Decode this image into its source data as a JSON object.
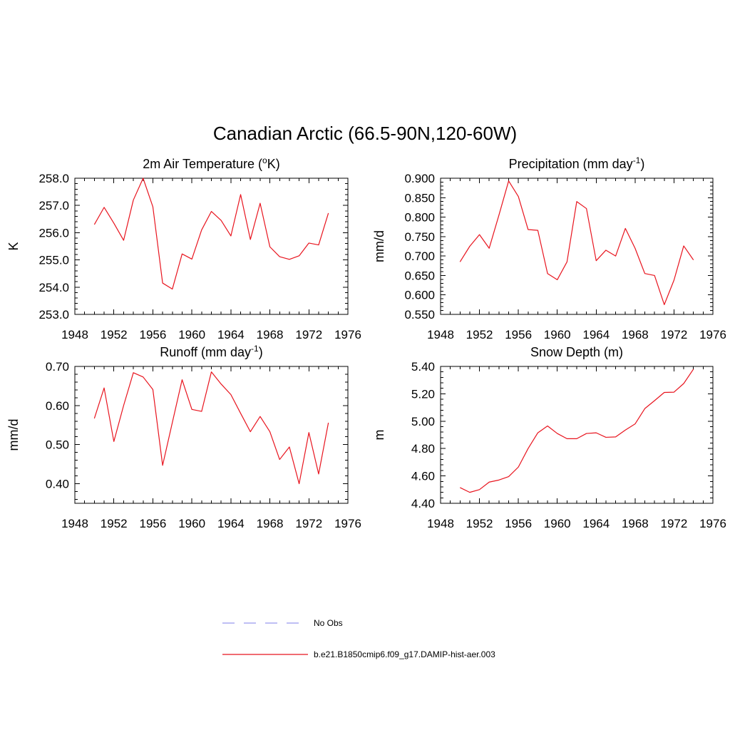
{
  "figure": {
    "title": "Canadian Arctic (66.5-90N,120-60W)"
  },
  "colors": {
    "model_line": "#e8141e",
    "obs_line": "#9999ee",
    "axis": "#000000"
  },
  "legend": {
    "obs_label": "No Obs",
    "model_label": "b.e21.B1850cmip6.f09_g17.DAMIP-hist-aer.003"
  },
  "chart_data": [
    {
      "type": "line",
      "title_main": "2m Air Temperature (",
      "title_sup": "o",
      "title_end": "K)",
      "ylabel": "K",
      "xlim": [
        1948,
        1976
      ],
      "xticks": [
        1948,
        1952,
        1956,
        1960,
        1964,
        1968,
        1972,
        1976
      ],
      "ylim": [
        253.0,
        258.0
      ],
      "yticks": [
        "253.0",
        "254.0",
        "255.0",
        "256.0",
        "257.0",
        "258.0"
      ],
      "series": [
        {
          "x": [
            1950,
            1951,
            1952,
            1953,
            1954,
            1955,
            1956,
            1957,
            1958,
            1959,
            1960,
            1961,
            1962,
            1963,
            1964,
            1965,
            1966,
            1967,
            1968,
            1969,
            1970,
            1971,
            1972,
            1973,
            1974
          ],
          "values": [
            256.3,
            256.93,
            256.35,
            255.72,
            257.2,
            258.0,
            256.95,
            254.15,
            253.93,
            255.22,
            255.03,
            256.1,
            256.78,
            256.45,
            255.88,
            257.4,
            255.75,
            257.08,
            255.48,
            255.12,
            255.02,
            255.15,
            255.62,
            255.55,
            256.72
          ]
        }
      ]
    },
    {
      "type": "line",
      "title_main": "Precipitation (mm day",
      "title_sup": "-1",
      "title_end": ")",
      "ylabel": "mm/d",
      "xlim": [
        1948,
        1976
      ],
      "xticks": [
        1948,
        1952,
        1956,
        1960,
        1964,
        1968,
        1972,
        1976
      ],
      "ylim": [
        0.55,
        0.9
      ],
      "yticks": [
        "0.550",
        "0.600",
        "0.650",
        "0.700",
        "0.750",
        "0.800",
        "0.850",
        "0.900"
      ],
      "series": [
        {
          "x": [
            1950,
            1951,
            1952,
            1953,
            1954,
            1955,
            1956,
            1957,
            1958,
            1959,
            1960,
            1961,
            1962,
            1963,
            1964,
            1965,
            1966,
            1967,
            1968,
            1969,
            1970,
            1971,
            1972,
            1973,
            1974
          ],
          "values": [
            0.685,
            0.725,
            0.755,
            0.72,
            0.805,
            0.893,
            0.853,
            0.768,
            0.766,
            0.655,
            0.639,
            0.685,
            0.84,
            0.822,
            0.688,
            0.715,
            0.7,
            0.771,
            0.72,
            0.655,
            0.65,
            0.575,
            0.638,
            0.726,
            0.69
          ]
        }
      ]
    },
    {
      "type": "line",
      "title_main": "Runoff (mm day",
      "title_sup": "-1",
      "title_end": ")",
      "ylabel": "mm/d",
      "xlim": [
        1948,
        1976
      ],
      "xticks": [
        1948,
        1952,
        1956,
        1960,
        1964,
        1968,
        1972,
        1976
      ],
      "ylim": [
        0.35,
        0.7
      ],
      "yticks": [
        "0.40",
        "0.50",
        "0.60",
        "0.70"
      ],
      "series": [
        {
          "x": [
            1950,
            1951,
            1952,
            1953,
            1954,
            1955,
            1956,
            1957,
            1958,
            1959,
            1960,
            1961,
            1962,
            1963,
            1964,
            1965,
            1966,
            1967,
            1968,
            1969,
            1970,
            1971,
            1972,
            1973,
            1974
          ],
          "values": [
            0.567,
            0.645,
            0.508,
            0.6,
            0.684,
            0.673,
            0.641,
            0.447,
            0.557,
            0.666,
            0.59,
            0.585,
            0.686,
            0.655,
            0.628,
            0.58,
            0.533,
            0.572,
            0.533,
            0.462,
            0.494,
            0.4,
            0.531,
            0.425,
            0.556
          ]
        }
      ]
    },
    {
      "type": "line",
      "title_main": "Snow Depth (m)",
      "title_sup": "",
      "title_end": "",
      "ylabel": "m",
      "xlim": [
        1948,
        1976
      ],
      "xticks": [
        1948,
        1952,
        1956,
        1960,
        1964,
        1968,
        1972,
        1976
      ],
      "ylim": [
        4.4,
        5.4
      ],
      "yticks": [
        "4.40",
        "4.60",
        "4.80",
        "5.00",
        "5.20",
        "5.40"
      ],
      "series": [
        {
          "x": [
            1950,
            1951,
            1952,
            1953,
            1954,
            1955,
            1956,
            1957,
            1958,
            1959,
            1960,
            1961,
            1962,
            1963,
            1964,
            1965,
            1966,
            1967,
            1968,
            1969,
            1970,
            1971,
            1972,
            1973,
            1974
          ],
          "values": [
            4.515,
            4.48,
            4.5,
            4.555,
            4.57,
            4.595,
            4.665,
            4.8,
            4.915,
            4.965,
            4.91,
            4.872,
            4.872,
            4.91,
            4.915,
            4.882,
            4.885,
            4.935,
            4.98,
            5.092,
            5.15,
            5.21,
            5.212,
            5.275,
            5.38
          ]
        }
      ]
    }
  ]
}
